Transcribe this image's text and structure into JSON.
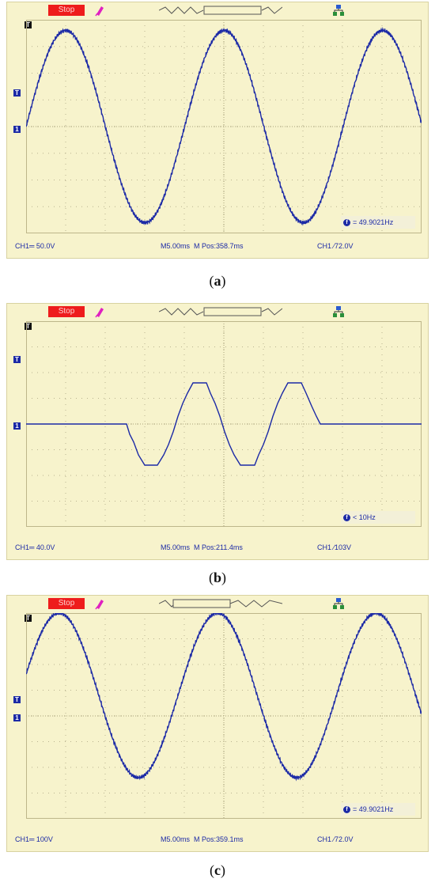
{
  "panels": [
    {
      "caption": {
        "open": "(",
        "letter": "a",
        "close": ")"
      },
      "status": {
        "run_state": "Stop",
        "ch_scale": "CH1═ 50.0V",
        "timebase": "M5.00ms",
        "mpos": "M Pos:358.7ms",
        "trigger": "CH1 ∕72.0V"
      },
      "frequency": "= 49.9021Hz",
      "markers": {
        "trigger": "T",
        "level": "T",
        "channel": "1"
      }
    },
    {
      "caption": {
        "open": "(",
        "letter": "b",
        "close": ")"
      },
      "status": {
        "run_state": "Stop",
        "ch_scale": "CH1═ 40.0V",
        "timebase": "M5.00ms",
        "mpos": "M Pos:211.4ms",
        "trigger": "CH1 ∕103V"
      },
      "frequency": "< 10Hz",
      "markers": {
        "trigger": "T",
        "level": "T",
        "channel": "1"
      }
    },
    {
      "caption": {
        "open": "(",
        "letter": "c",
        "close": ")"
      },
      "status": {
        "run_state": "Stop",
        "ch_scale": "CH1═ 100V",
        "timebase": "M5.00ms",
        "mpos": "M Pos:359.1ms",
        "trigger": "CH1 ∕72.0V"
      },
      "frequency": "= 49.9021Hz",
      "markers": {
        "trigger": "T",
        "level": "T",
        "channel": "1"
      }
    }
  ],
  "chart_data": [
    {
      "type": "line",
      "title": "",
      "xlabel": "",
      "ylabel": "",
      "xlim": [
        0,
        50
      ],
      "ylim": [
        -4,
        4
      ],
      "grid": true,
      "series": [
        {
          "waveform": "sine",
          "frequency_hz": 49.9021,
          "amplitude_div": 3.6,
          "offset_div": 0.0,
          "phase_deg": 0,
          "color": "#1c2aa6"
        }
      ]
    },
    {
      "type": "line",
      "title": "",
      "xlabel": "",
      "ylabel": "",
      "xlim": [
        0,
        50
      ],
      "ylim": [
        -4,
        4
      ],
      "grid": true,
      "series": [
        {
          "waveform": "staircase",
          "color": "#1c2aa6",
          "points": [
            [
              0,
              0
            ],
            [
              12.7,
              0
            ],
            [
              13.1,
              -0.4
            ],
            [
              13.6,
              -0.7
            ],
            [
              14.2,
              -1.2
            ],
            [
              15.0,
              -1.6
            ],
            [
              15.7,
              -1.6
            ],
            [
              16.6,
              -1.6
            ],
            [
              17.4,
              -1.2
            ],
            [
              18.0,
              -0.8
            ],
            [
              18.6,
              -0.3
            ],
            [
              19.2,
              0.3
            ],
            [
              19.8,
              0.8
            ],
            [
              20.4,
              1.2
            ],
            [
              21.1,
              1.6
            ],
            [
              22.1,
              1.6
            ],
            [
              22.8,
              1.6
            ],
            [
              23.3,
              1.2
            ],
            [
              23.9,
              0.8
            ],
            [
              24.5,
              0.3
            ],
            [
              25.1,
              -0.3
            ],
            [
              25.7,
              -0.8
            ],
            [
              26.3,
              -1.2
            ],
            [
              27.1,
              -1.6
            ],
            [
              28.1,
              -1.6
            ],
            [
              28.9,
              -1.6
            ],
            [
              29.4,
              -1.2
            ],
            [
              30.0,
              -0.8
            ],
            [
              30.6,
              -0.3
            ],
            [
              31.2,
              0.3
            ],
            [
              31.8,
              0.8
            ],
            [
              32.4,
              1.2
            ],
            [
              33.1,
              1.6
            ],
            [
              34.1,
              1.6
            ],
            [
              34.8,
              1.6
            ],
            [
              35.4,
              1.2
            ],
            [
              36.1,
              0.7
            ],
            [
              36.7,
              0.3
            ],
            [
              37.2,
              0.0
            ],
            [
              50,
              0
            ]
          ]
        }
      ]
    },
    {
      "type": "line",
      "title": "",
      "xlabel": "",
      "ylabel": "",
      "xlim": [
        0,
        50
      ],
      "ylim": [
        -4,
        4
      ],
      "grid": true,
      "series": [
        {
          "waveform": "sine",
          "frequency_hz": 49.9021,
          "amplitude_div": 3.2,
          "offset_div": 0.8,
          "phase_deg": 15,
          "color": "#1c2aa6"
        }
      ]
    }
  ]
}
